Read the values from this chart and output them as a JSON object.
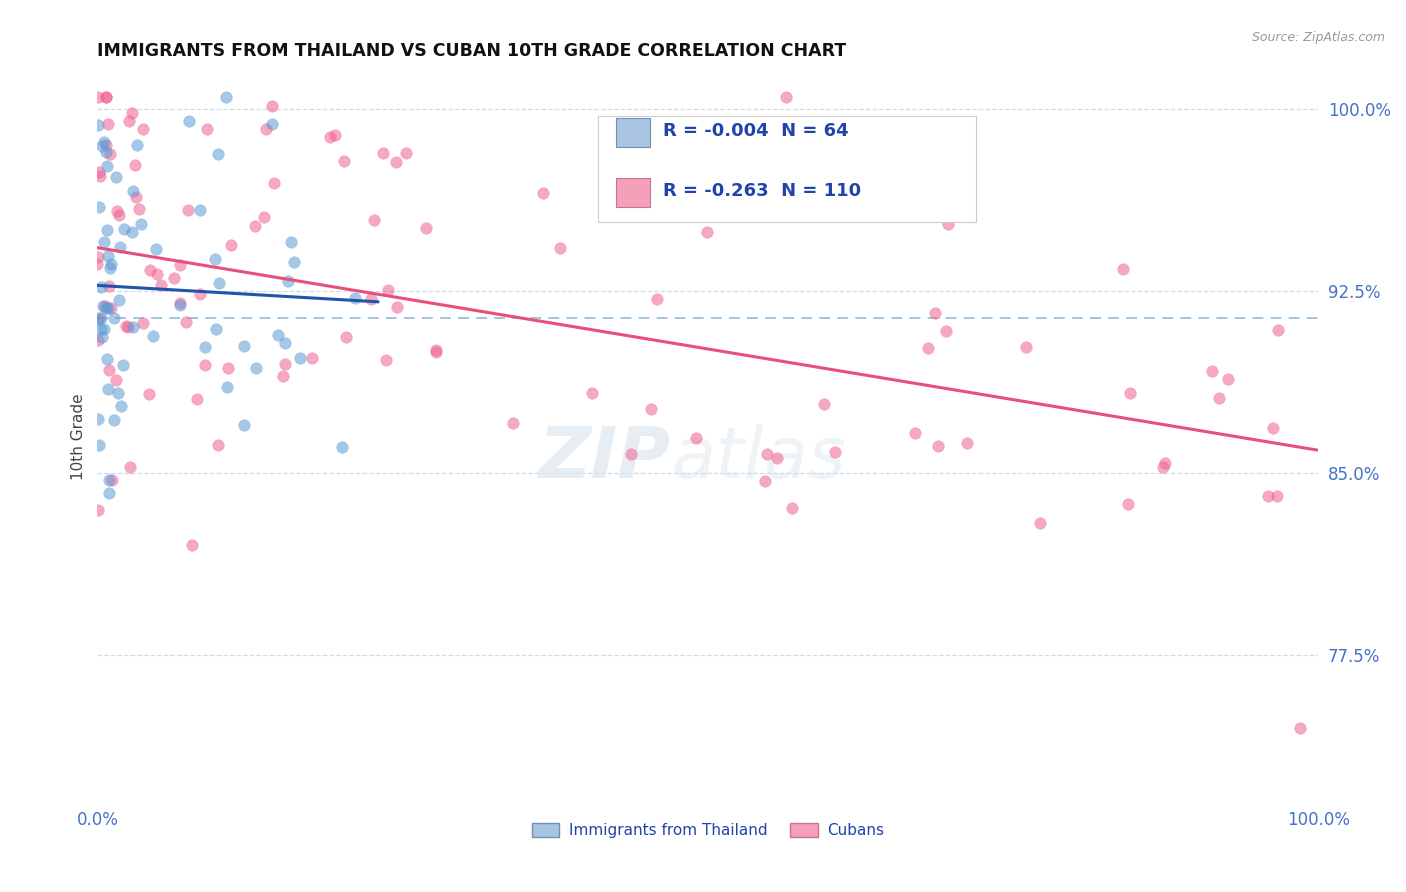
{
  "title": "IMMIGRANTS FROM THAILAND VS CUBAN 10TH GRADE CORRELATION CHART",
  "source_text": "Source: ZipAtlas.com",
  "ylabel": "10th Grade",
  "xlim": [
    0.0,
    1.0
  ],
  "ylim": [
    0.715,
    1.015
  ],
  "yticks": [
    0.775,
    0.85,
    0.925,
    1.0
  ],
  "ytick_labels": [
    "77.5%",
    "85.0%",
    "92.5%",
    "100.0%"
  ],
  "xtick_labels": [
    "0.0%",
    "100.0%"
  ],
  "xtick_positions": [
    0.0,
    1.0
  ],
  "legend_entries": [
    {
      "label": "Immigrants from Thailand",
      "color": "#a8c4e0",
      "border": "#7090b8",
      "R": "-0.004",
      "N": "64"
    },
    {
      "label": "Cubans",
      "color": "#f4a0b8",
      "border": "#d07090",
      "R": "-0.263",
      "N": "110"
    }
  ],
  "thailand_dot_color": "#5b9bd5",
  "cuban_dot_color": "#f06090",
  "trend_thailand_color": "#2255aa",
  "trend_cuban_color": "#e8507a",
  "ref_line_color": "#90b8d8",
  "ref_line_y": 0.914,
  "watermark_zip": "ZIP",
  "watermark_atlas": "atlas",
  "background_color": "#ffffff",
  "title_color": "#111111",
  "title_fontsize": 12.5,
  "tick_color": "#4472c4",
  "grid_color": "#c8d8e8",
  "legend_text_color": "#2244aa",
  "source_color": "#999999"
}
